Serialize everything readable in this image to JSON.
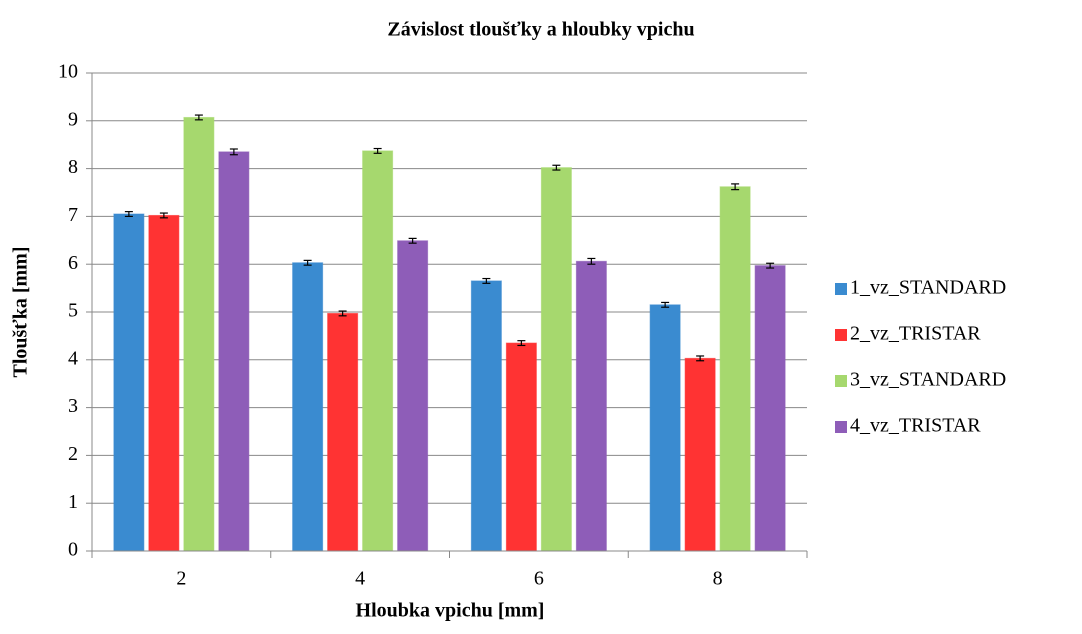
{
  "chart_data": {
    "type": "bar",
    "title": "Závislost tloušťky a hloubky vpichu",
    "x_label": "Hloubka vpichu [mm]",
    "y_label": "Tloušťka [mm]",
    "categories": [
      "2",
      "4",
      "6",
      "8"
    ],
    "series": [
      {
        "name": "1_vz_STANDARD",
        "color": "#3a8bd0",
        "values": [
          7.05,
          6.03,
          5.65,
          5.15
        ],
        "errors": [
          0.05,
          0.05,
          0.05,
          0.05
        ]
      },
      {
        "name": "2_vz_TRISTAR",
        "color": "#ff3333",
        "values": [
          7.02,
          4.97,
          4.35,
          4.03
        ],
        "errors": [
          0.05,
          0.05,
          0.05,
          0.05
        ]
      },
      {
        "name": "3_vz_STANDARD",
        "color": "#a6d86e",
        "values": [
          9.07,
          8.37,
          8.02,
          7.62
        ],
        "errors": [
          0.05,
          0.05,
          0.05,
          0.06
        ]
      },
      {
        "name": "4_vz_TRISTAR",
        "color": "#8e5db8",
        "values": [
          8.35,
          6.49,
          6.06,
          5.97
        ],
        "errors": [
          0.06,
          0.05,
          0.06,
          0.05
        ]
      }
    ],
    "ylim": [
      0,
      10
    ],
    "yticks": [
      0,
      1,
      2,
      3,
      4,
      5,
      6,
      7,
      8,
      9,
      10
    ],
    "grid": true,
    "legend": "right"
  }
}
